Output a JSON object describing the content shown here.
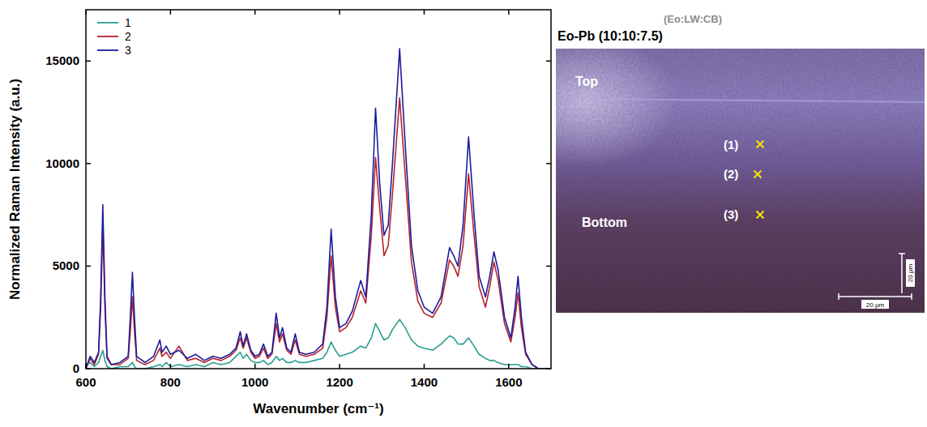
{
  "chart_data": {
    "type": "line",
    "x_label": "Wavenumber (cm⁻¹)",
    "y_label": "Normalized Raman Intensity (a.u.)",
    "xlim": [
      600,
      1700
    ],
    "ylim": [
      0,
      17500
    ],
    "xticks": [
      600,
      800,
      1000,
      1200,
      1400,
      1600
    ],
    "yticks": [
      0,
      5000,
      10000,
      15000
    ],
    "legend": "upper left",
    "x": [
      600,
      610,
      620,
      630,
      635,
      640,
      645,
      650,
      660,
      680,
      700,
      705,
      710,
      715,
      720,
      740,
      760,
      775,
      780,
      790,
      800,
      820,
      840,
      860,
      880,
      900,
      920,
      940,
      955,
      965,
      972,
      980,
      990,
      1000,
      1010,
      1020,
      1030,
      1040,
      1050,
      1058,
      1065,
      1075,
      1085,
      1095,
      1105,
      1120,
      1140,
      1160,
      1170,
      1180,
      1190,
      1200,
      1215,
      1230,
      1250,
      1262,
      1275,
      1285,
      1295,
      1305,
      1315,
      1325,
      1342,
      1355,
      1370,
      1385,
      1400,
      1420,
      1440,
      1460,
      1470,
      1480,
      1492,
      1505,
      1518,
      1530,
      1545,
      1555,
      1565,
      1575,
      1590,
      1605,
      1615,
      1622,
      1630,
      1640,
      1655,
      1670,
      1690,
      1700
    ],
    "series": [
      {
        "name": "1",
        "color": "#2a9d8f",
        "values": [
          200,
          300,
          100,
          300,
          600,
          900,
          400,
          100,
          0,
          100,
          100,
          200,
          300,
          100,
          0,
          0,
          100,
          200,
          100,
          300,
          100,
          200,
          100,
          200,
          100,
          300,
          200,
          300,
          600,
          800,
          500,
          700,
          400,
          300,
          300,
          400,
          200,
          300,
          600,
          400,
          500,
          300,
          300,
          400,
          300,
          300,
          400,
          500,
          800,
          1300,
          900,
          600,
          700,
          800,
          1100,
          1000,
          1500,
          2200,
          1800,
          1400,
          1500,
          1900,
          2400,
          2000,
          1400,
          1100,
          1000,
          900,
          1200,
          1600,
          1500,
          1200,
          1200,
          1500,
          1100,
          700,
          500,
          400,
          400,
          300,
          200,
          200,
          200,
          200,
          100,
          100,
          0,
          0,
          0,
          0
        ]
      },
      {
        "name": "2",
        "color": "#b5222a",
        "values": [
          0,
          500,
          200,
          700,
          3000,
          7000,
          3000,
          500,
          200,
          200,
          500,
          1800,
          3500,
          1800,
          400,
          200,
          400,
          1000,
          600,
          800,
          500,
          1100,
          400,
          500,
          300,
          500,
          400,
          600,
          900,
          1500,
          1000,
          1500,
          800,
          500,
          600,
          1000,
          500,
          700,
          2200,
          1300,
          1700,
          900,
          700,
          1400,
          700,
          600,
          700,
          1000,
          2500,
          5500,
          3000,
          1800,
          2000,
          2500,
          3800,
          3200,
          6500,
          10300,
          7800,
          5500,
          6000,
          8500,
          13200,
          9500,
          5200,
          3300,
          2700,
          2500,
          3200,
          5300,
          5000,
          4500,
          6000,
          9500,
          6500,
          4000,
          3000,
          4000,
          5200,
          4300,
          2200,
          1300,
          2500,
          3700,
          2000,
          700,
          200,
          0,
          0,
          0
        ]
      },
      {
        "name": "3",
        "color": "#1c1c9e",
        "values": [
          0,
          600,
          300,
          800,
          3500,
          8000,
          3500,
          600,
          200,
          300,
          600,
          2500,
          4700,
          2500,
          600,
          300,
          600,
          1400,
          800,
          1100,
          700,
          900,
          500,
          700,
          400,
          600,
          500,
          700,
          1000,
          1800,
          1100,
          1700,
          900,
          600,
          700,
          1200,
          600,
          800,
          2700,
          1500,
          2000,
          1000,
          800,
          1700,
          800,
          700,
          800,
          1200,
          3000,
          6800,
          3500,
          2000,
          2200,
          2800,
          4300,
          3500,
          7500,
          12700,
          9000,
          6500,
          7000,
          10000,
          15600,
          11000,
          6000,
          3800,
          3000,
          2700,
          3500,
          5900,
          5500,
          5000,
          7000,
          11300,
          7500,
          4500,
          3500,
          4500,
          5700,
          4800,
          2500,
          1500,
          3000,
          4500,
          2500,
          800,
          200,
          0,
          0,
          0
        ]
      }
    ]
  },
  "image_panel": {
    "subtitle": "(Eo:LW:CB)",
    "title": "Eo-Pb (10:10:7.5)",
    "region_labels": [
      "Top",
      "Bottom"
    ],
    "points": [
      "(1)",
      "(2)",
      "(3)"
    ],
    "scale_bars": [
      "20 µm",
      "20 µm"
    ]
  }
}
